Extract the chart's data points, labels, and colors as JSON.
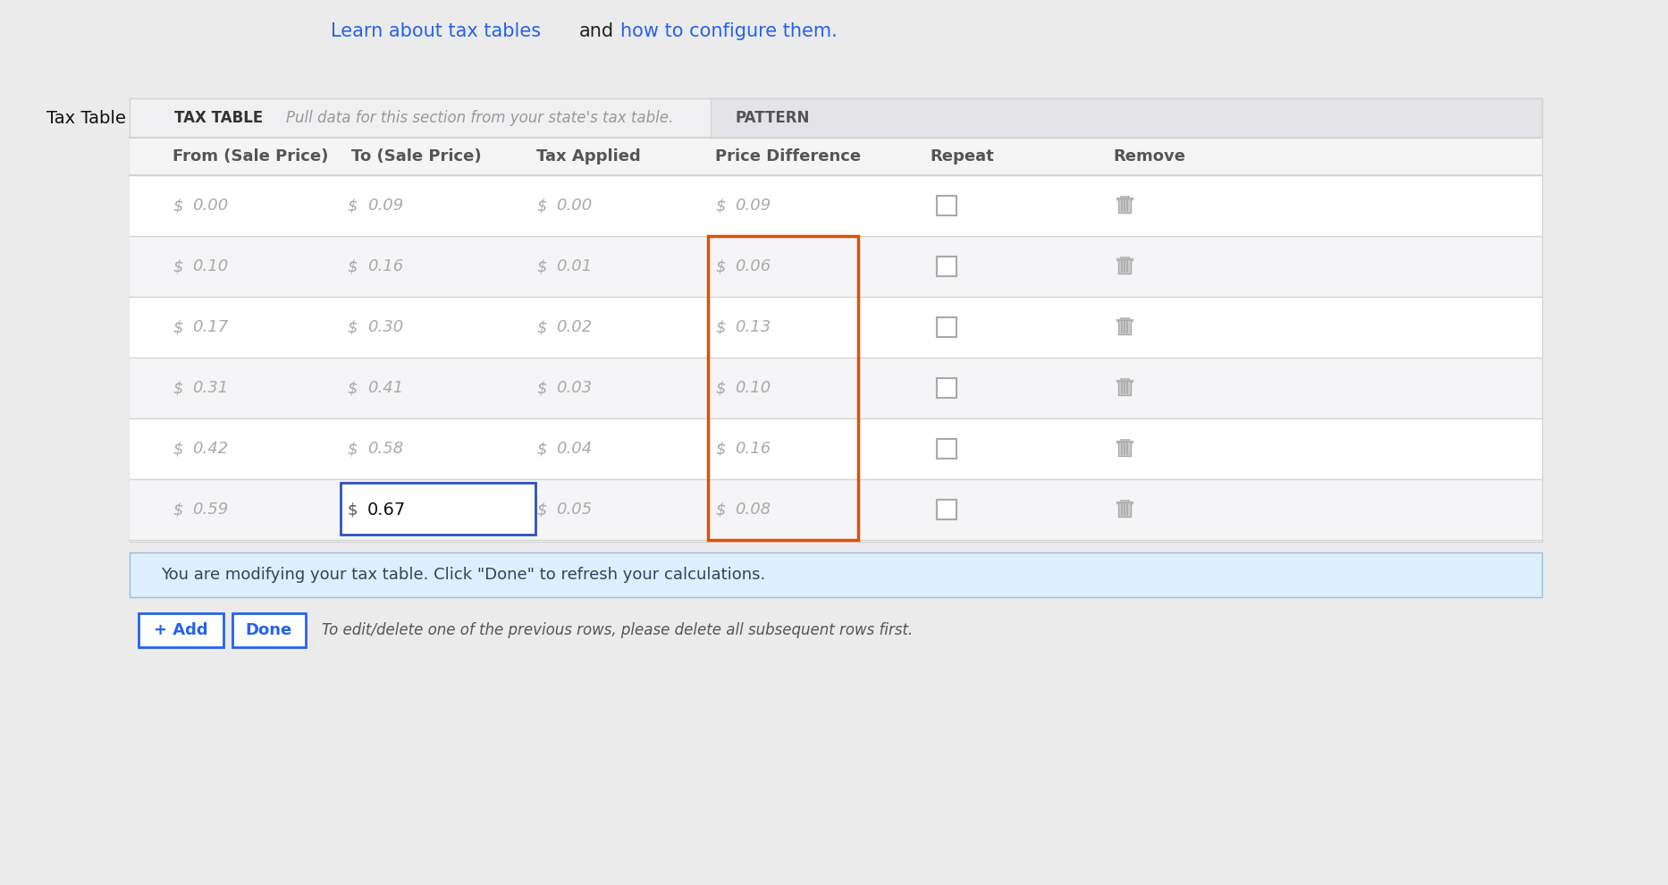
{
  "bg_color": "#ebebeb",
  "link_color": "#2563eb",
  "link1": "Learn about tax tables",
  "and_text": "and",
  "link2": "how to configure them.",
  "label_left": "Tax Table",
  "section_header": "TAX TABLE",
  "section_subtext": "Pull data for this section from your state's tax table.",
  "pattern_header": "PATTERN",
  "col_headers": [
    "From (Sale Price)",
    "To (Sale Price)",
    "Tax Applied",
    "Price Difference",
    "Repeat",
    "Remove"
  ],
  "rows": [
    {
      "from": "0.00",
      "to": "0.09",
      "tax": "0.00",
      "diff": "0.09"
    },
    {
      "from": "0.10",
      "to": "0.16",
      "tax": "0.01",
      "diff": "0.06"
    },
    {
      "from": "0.17",
      "to": "0.30",
      "tax": "0.02",
      "diff": "0.13"
    },
    {
      "from": "0.31",
      "to": "0.41",
      "tax": "0.03",
      "diff": "0.10"
    },
    {
      "from": "0.42",
      "to": "0.58",
      "tax": "0.04",
      "diff": "0.16"
    },
    {
      "from": "0.59",
      "to": "0.67",
      "tax": "0.05",
      "diff": "0.08"
    }
  ],
  "edited_row_idx": 5,
  "orange_col_rows": [
    1,
    2,
    3,
    4,
    5
  ],
  "info_text": "You are modifying your tax table. Click \"Done\" to refresh your calculations.",
  "bottom_note": "To edit/delete one of the previous rows, please delete all subsequent rows first.",
  "add_btn": "+ Add",
  "done_btn": "Done",
  "orange_color": "#e05000",
  "blue_input_color": "#2a52be",
  "info_bg": "#ddeeff",
  "info_border": "#9bbcda",
  "btn_color": "#2563eb",
  "divider": "#d4d4d4",
  "header_bg": "#f0f0f2",
  "subheader_bg": "#f5f5f5",
  "pattern_bg": "#e4e4e8",
  "row_bg_white": "#ffffff",
  "row_bg_light": "#f5f5f7",
  "gray_text": "#aaaaaa",
  "dark_text": "#333333",
  "mid_text": "#555555"
}
